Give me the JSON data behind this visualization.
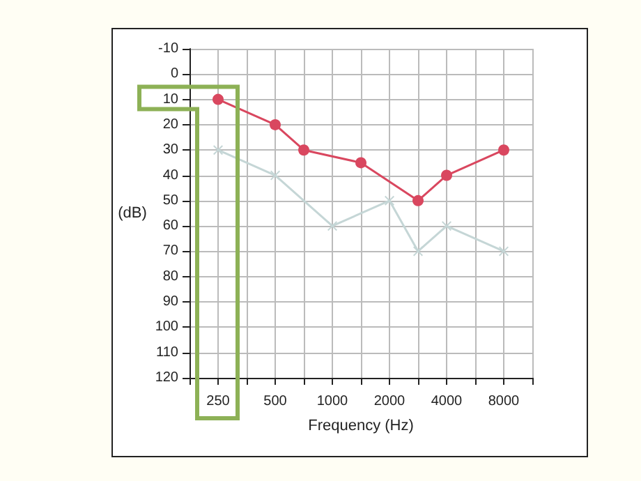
{
  "chart_data": {
    "type": "line",
    "xlabel": "Frequency (Hz)",
    "ylabel": "(dB)",
    "categories": [
      null,
      "250",
      null,
      "500",
      null,
      "1000",
      null,
      "2000",
      null,
      "4000",
      null,
      "8000",
      null
    ],
    "series": [
      {
        "color": "#d9475f",
        "marker": "circle",
        "values": [
          null,
          10,
          null,
          20,
          30,
          null,
          35,
          null,
          50,
          40,
          null,
          30,
          null
        ]
      },
      {
        "color": "#c5d6d6",
        "marker": "cross",
        "values": [
          null,
          30,
          null,
          40,
          null,
          60,
          null,
          50,
          70,
          60,
          null,
          70,
          null
        ]
      }
    ],
    "ylim": [
      120,
      -10
    ],
    "yticks": [
      -10,
      0,
      10,
      20,
      30,
      40,
      50,
      60,
      70,
      80,
      90,
      100,
      110,
      120
    ],
    "grid": true
  }
}
